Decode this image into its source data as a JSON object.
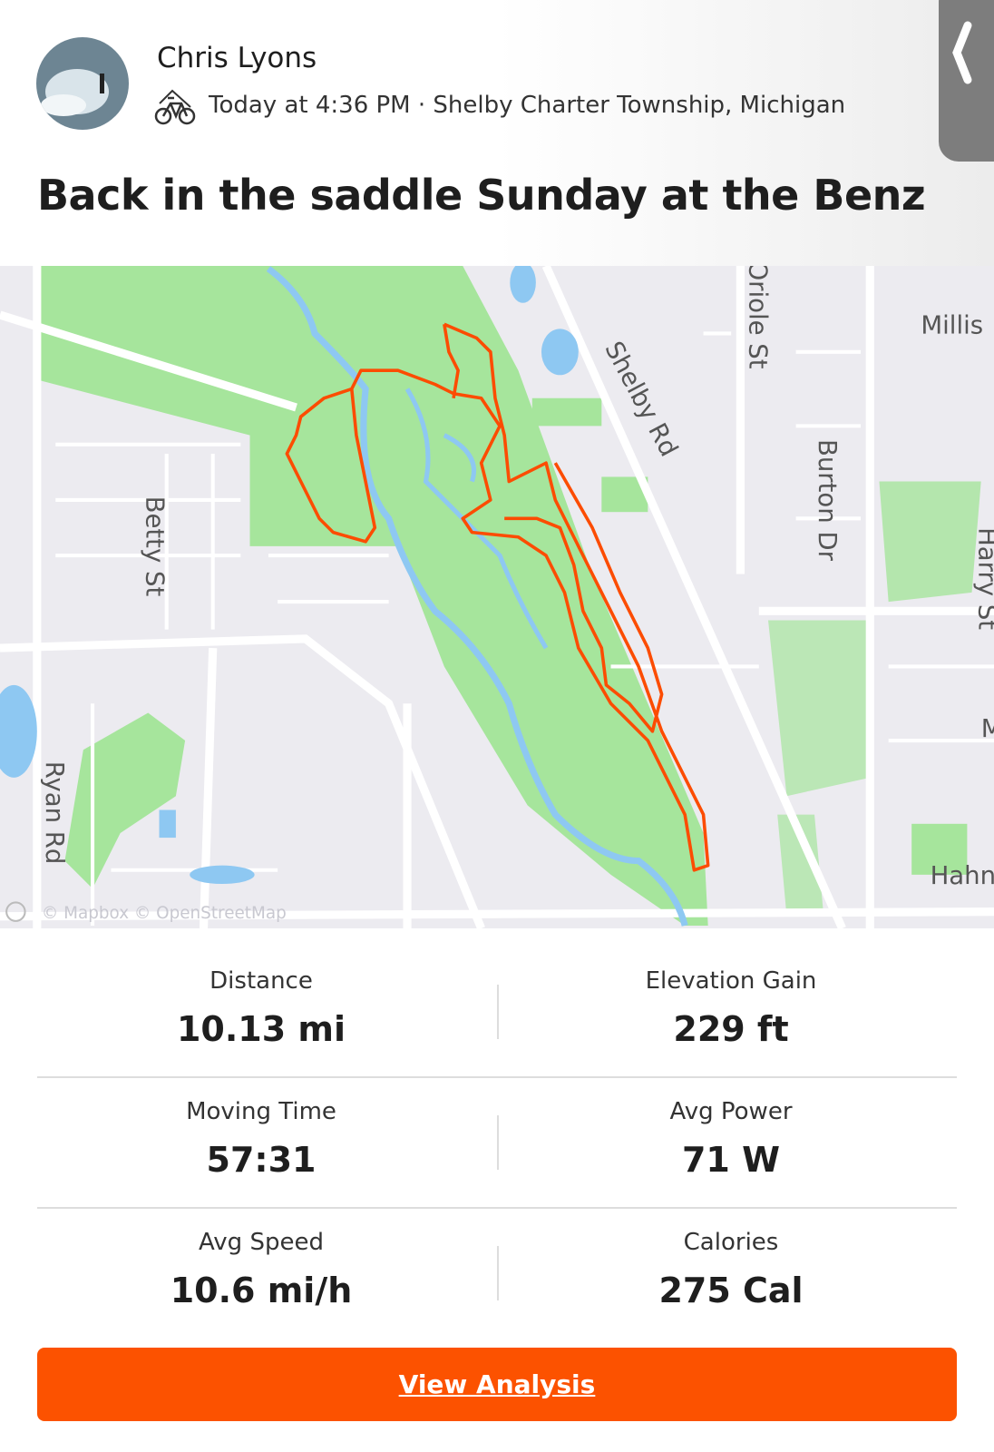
{
  "header": {
    "athlete": "Chris Lyons",
    "meta": "Today at 4:36 PM · Shelby Charter Township, Michigan"
  },
  "title": "Back in the saddle Sunday at the Benz",
  "map": {
    "labels": [
      "Shelby Rd",
      "Oriole St",
      "Millis",
      "Burton Dr",
      "Harry St",
      "Betty St",
      "Ryan Rd",
      "M",
      "Hahn"
    ],
    "attribution": "© Mapbox © OpenStreetMap"
  },
  "stats": [
    {
      "label": "Distance",
      "value": "10.13 mi"
    },
    {
      "label": "Elevation Gain",
      "value": "229 ft"
    },
    {
      "label": "Moving Time",
      "value": "57:31"
    },
    {
      "label": "Avg Power",
      "value": "71 W"
    },
    {
      "label": "Avg Speed",
      "value": "10.6 mi/h"
    },
    {
      "label": "Calories",
      "value": "275 Cal"
    }
  ],
  "button": "View Analysis"
}
